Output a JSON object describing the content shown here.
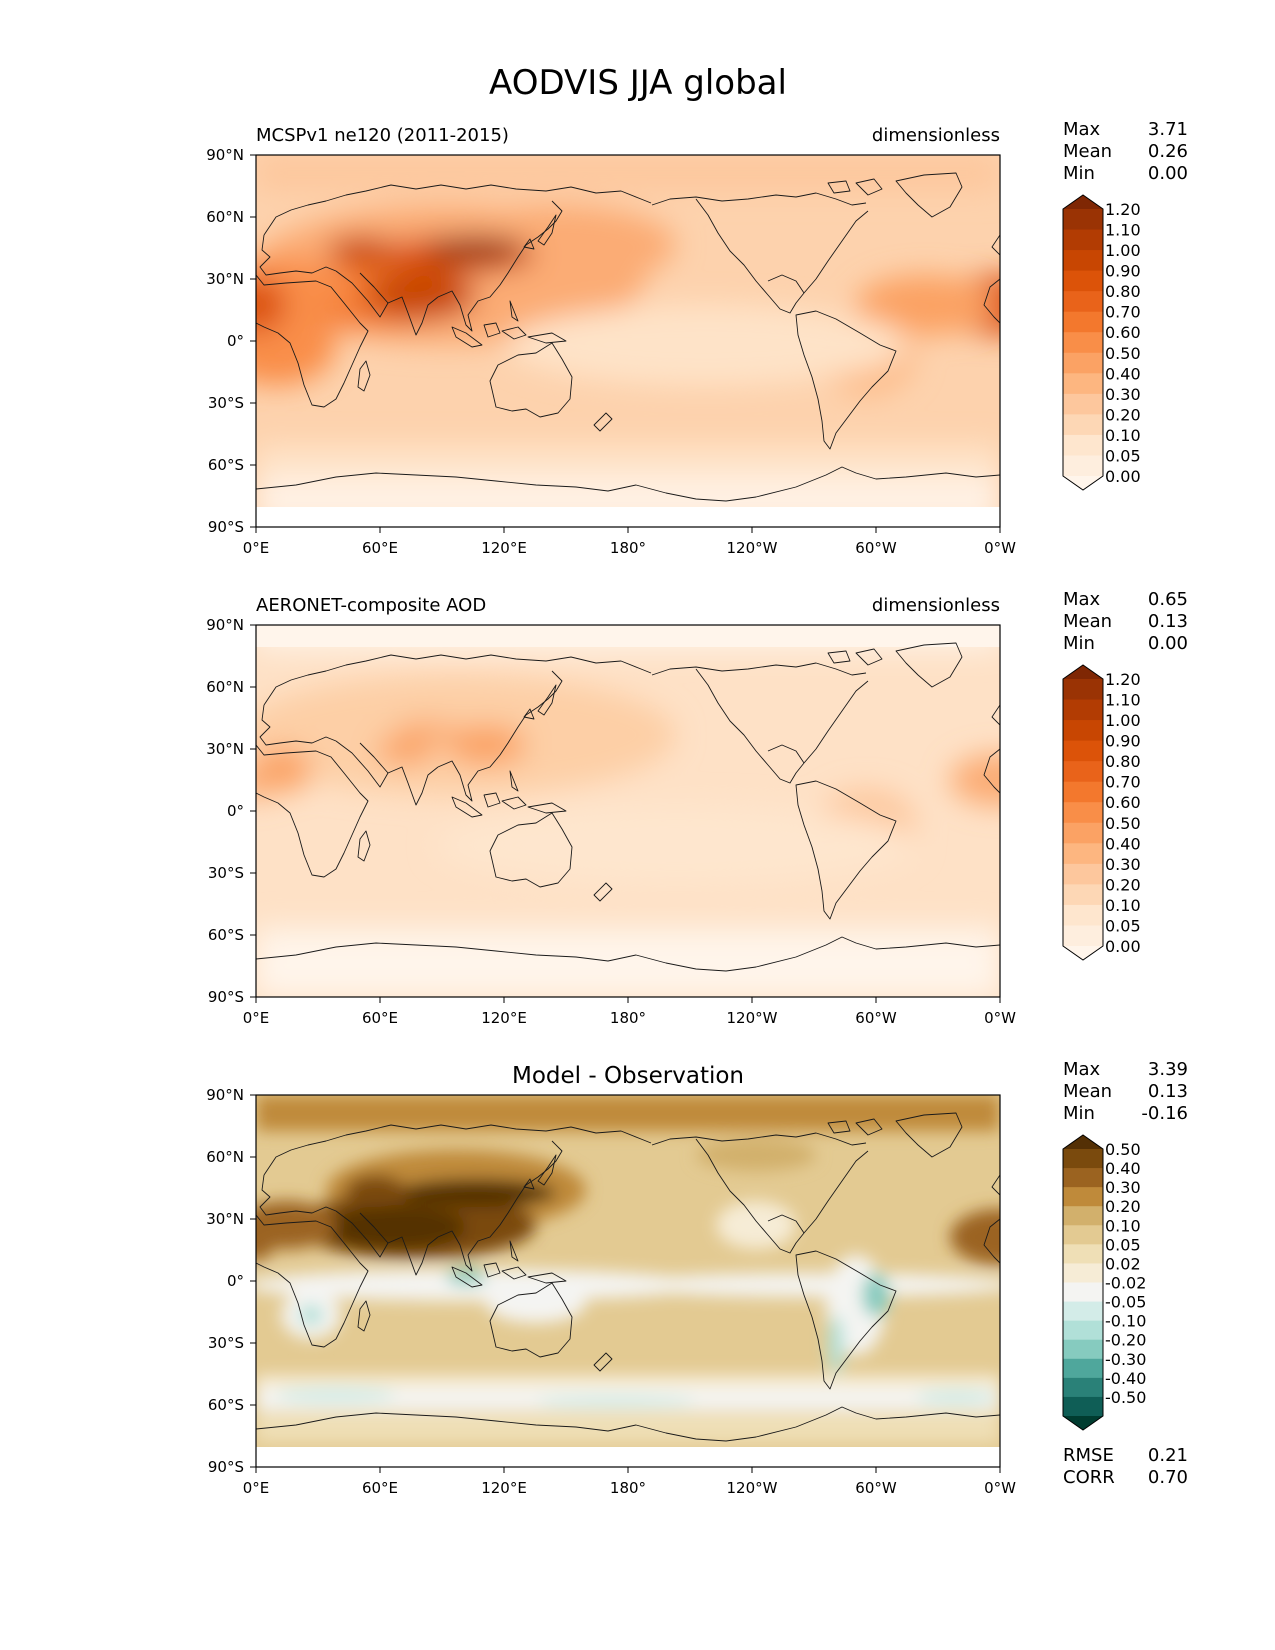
{
  "figure": {
    "title": "AODVIS JJA global"
  },
  "axes_labels": {
    "lat_ticks": [
      "90°N",
      "60°N",
      "30°N",
      "0°",
      "30°S",
      "60°S",
      "90°S"
    ],
    "lon_ticks": [
      "0°E",
      "60°E",
      "120°E",
      "180°",
      "120°W",
      "60°W",
      "0°W"
    ]
  },
  "panels": [
    {
      "id": "model",
      "left_title": "MCSPv1 ne120 (2011-2015)",
      "center_title": "",
      "right_title": "dimensionless",
      "stats": [
        {
          "label": "Max",
          "value": "3.71"
        },
        {
          "label": "Mean",
          "value": "0.26"
        },
        {
          "label": "Min",
          "value": "0.00"
        }
      ],
      "colorbar": {
        "labels": [
          "1.20",
          "1.10",
          "1.00",
          "0.90",
          "0.80",
          "0.70",
          "0.60",
          "0.50",
          "0.40",
          "0.30",
          "0.20",
          "0.10",
          "0.05",
          "0.00"
        ],
        "colors_top_to_bottom": [
          "#7f2704",
          "#9a3304",
          "#b23c03",
          "#c84602",
          "#dc5309",
          "#e9631a",
          "#f3782d",
          "#f98e48",
          "#fba264",
          "#fdb680",
          "#fdc79d",
          "#fdd7b5",
          "#fee6ce",
          "#feeede",
          "#fff5eb"
        ]
      },
      "bottom_stats": []
    },
    {
      "id": "obs",
      "left_title": "AERONET-composite AOD",
      "center_title": "",
      "right_title": "dimensionless",
      "stats": [
        {
          "label": "Max",
          "value": "0.65"
        },
        {
          "label": "Mean",
          "value": "0.13"
        },
        {
          "label": "Min",
          "value": "0.00"
        }
      ],
      "colorbar": {
        "labels": [
          "1.20",
          "1.10",
          "1.00",
          "0.90",
          "0.80",
          "0.70",
          "0.60",
          "0.50",
          "0.40",
          "0.30",
          "0.20",
          "0.10",
          "0.05",
          "0.00"
        ],
        "colors_top_to_bottom": [
          "#7f2704",
          "#9a3304",
          "#b23c03",
          "#c84602",
          "#dc5309",
          "#e9631a",
          "#f3782d",
          "#f98e48",
          "#fba264",
          "#fdb680",
          "#fdc79d",
          "#fdd7b5",
          "#fee6ce",
          "#feeede",
          "#fff5eb"
        ]
      },
      "bottom_stats": []
    },
    {
      "id": "diff",
      "left_title": "",
      "center_title": "Model - Observation",
      "right_title": "",
      "stats": [
        {
          "label": "Max",
          "value": "3.39"
        },
        {
          "label": "Mean",
          "value": "0.13"
        },
        {
          "label": "Min",
          "value": "-0.16"
        }
      ],
      "colorbar": {
        "labels": [
          "0.50",
          "0.40",
          "0.30",
          "0.20",
          "0.10",
          "0.05",
          "0.02",
          "-0.02",
          "-0.05",
          "-0.10",
          "-0.20",
          "-0.30",
          "-0.40",
          "-0.50"
        ],
        "colors_top_to_bottom": [
          "#543005",
          "#7a4a0d",
          "#9b6320",
          "#bf8a3a",
          "#d2b06c",
          "#e3ca92",
          "#efdfb6",
          "#f6ecd6",
          "#f4f4f2",
          "#d3ece8",
          "#b1e0d8",
          "#86cbbf",
          "#4fa79c",
          "#2a8178",
          "#0f5e56",
          "#003c30"
        ]
      },
      "bottom_stats": [
        {
          "label": "RMSE",
          "value": "0.21"
        },
        {
          "label": "CORR",
          "value": "0.70"
        }
      ]
    }
  ]
}
